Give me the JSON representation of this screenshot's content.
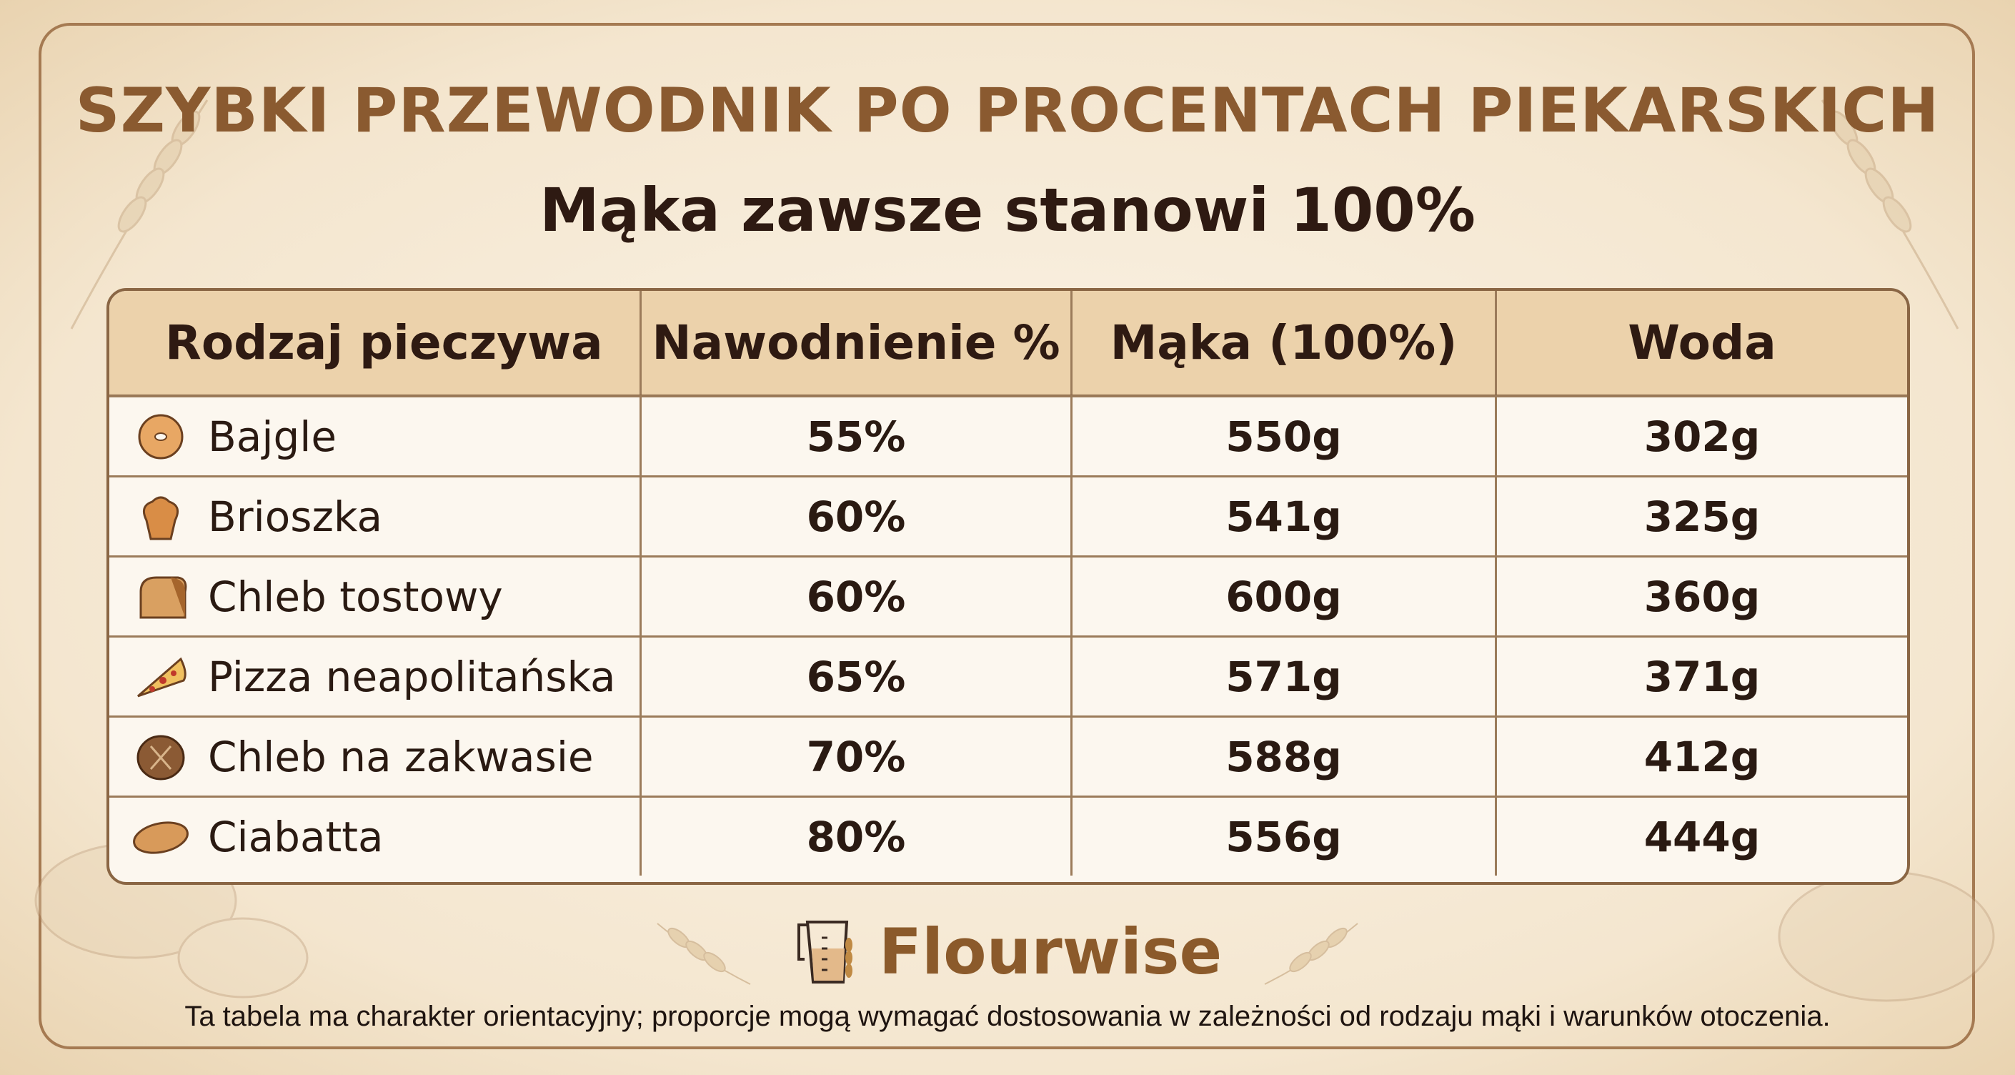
{
  "title": "SZYBKI PRZEWODNIK PO PROCENTACH PIEKARSKICH",
  "subtitle": "Mąka zawsze stanowi 100%",
  "table": {
    "headers": [
      "Rodzaj pieczywa",
      "Nawodnienie %",
      "Mąka (100%)",
      "Woda"
    ],
    "rows": [
      {
        "icon": "bagel-icon",
        "name": "Bajgle",
        "hydration": "55%",
        "flour": "550g",
        "water": "302g"
      },
      {
        "icon": "brioche-icon",
        "name": "Brioszka",
        "hydration": "60%",
        "flour": "541g",
        "water": "325g"
      },
      {
        "icon": "toast-bread-icon",
        "name": "Chleb tostowy",
        "hydration": "60%",
        "flour": "600g",
        "water": "360g"
      },
      {
        "icon": "pizza-icon",
        "name": "Pizza neapolitańska",
        "hydration": "65%",
        "flour": "571g",
        "water": "371g"
      },
      {
        "icon": "sourdough-icon",
        "name": "Chleb na zakwasie",
        "hydration": "70%",
        "flour": "588g",
        "water": "412g"
      },
      {
        "icon": "ciabatta-icon",
        "name": "Ciabatta",
        "hydration": "80%",
        "flour": "556g",
        "water": "444g"
      }
    ]
  },
  "brand": {
    "name": "Flourwise"
  },
  "note": "Ta tabela ma charakter orientacyjny; proporcje mogą wymagać dostosowania w zależności od rodzaju mąki i warunków otoczenia.",
  "colors": {
    "title": "#8a5a30",
    "header_bg": "#ecd2ab",
    "border": "#8a6644",
    "brand": "#8b5a2b"
  }
}
